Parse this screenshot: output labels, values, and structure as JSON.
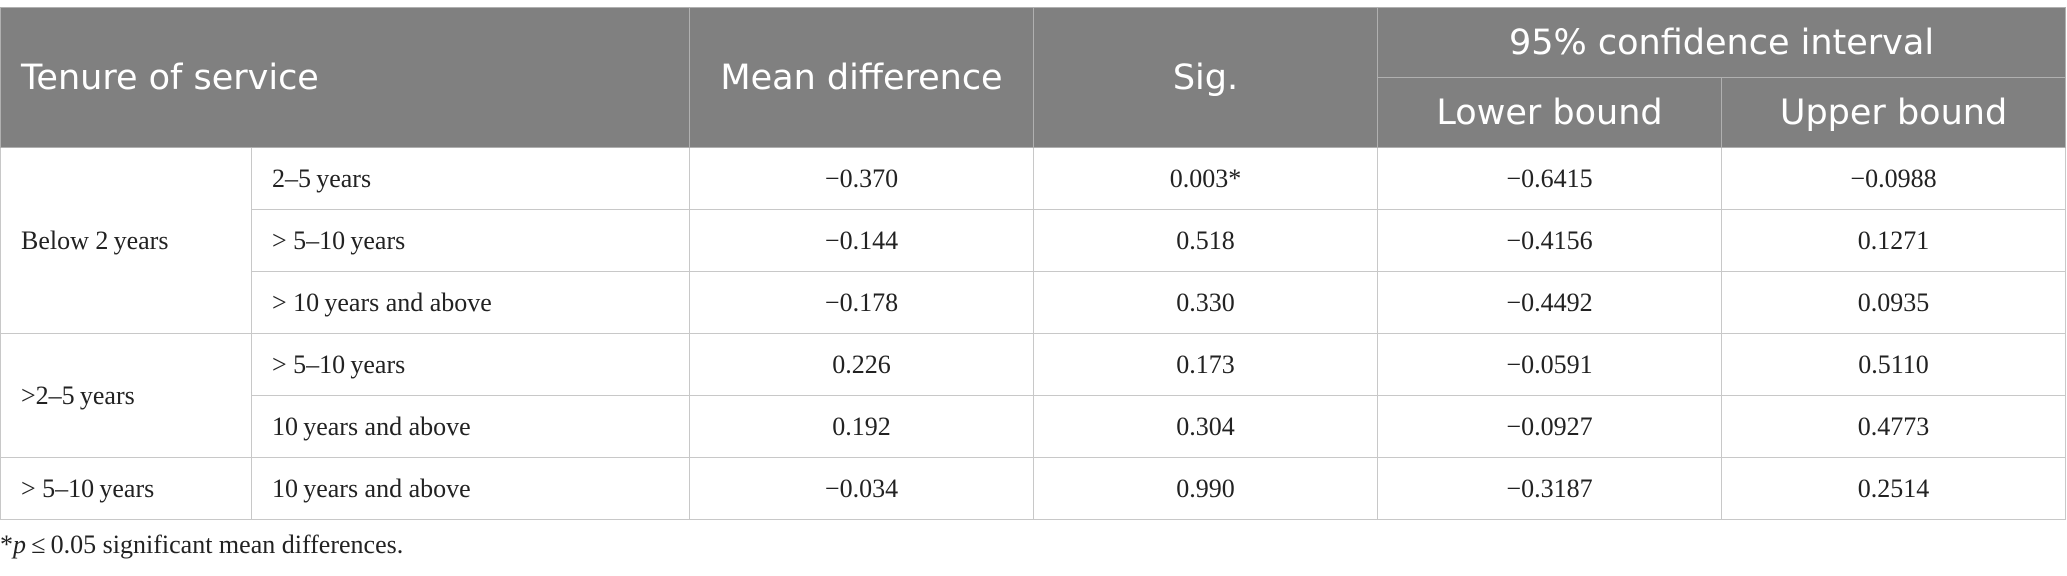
{
  "header": {
    "tenure": "Tenure of service",
    "mean_difference": "Mean difference",
    "sig": "Sig.",
    "ci": "95% confidence interval",
    "lower": "Lower bound",
    "upper": "Upper bound"
  },
  "groups": [
    {
      "label": "Below 2 years",
      "rows": [
        {
          "comparison": "2–5 years",
          "mean": "−0.370",
          "sig": "0.003*",
          "lower": "−0.6415",
          "upper": "−0.0988"
        },
        {
          "comparison": "> 5–10 years",
          "mean": "−0.144",
          "sig": "0.518",
          "lower": "−0.4156",
          "upper": "0.1271"
        },
        {
          "comparison": "> 10 years and above",
          "mean": "−0.178",
          "sig": "0.330",
          "lower": "−0.4492",
          "upper": "0.0935"
        }
      ]
    },
    {
      "label": ">2–5 years",
      "rows": [
        {
          "comparison": "> 5–10 years",
          "mean": "0.226",
          "sig": "0.173",
          "lower": "−0.0591",
          "upper": "0.5110"
        },
        {
          "comparison": "10 years and above",
          "mean": "0.192",
          "sig": "0.304",
          "lower": "−0.0927",
          "upper": "0.4773"
        }
      ]
    },
    {
      "label": "> 5–10 years",
      "rows": [
        {
          "comparison": "10 years and above",
          "mean": "−0.034",
          "sig": "0.990",
          "lower": "−0.3187",
          "upper": "0.2514"
        }
      ]
    }
  ],
  "footnote": {
    "star": "*",
    "p": "p",
    "text": " ≤ 0.05 significant mean differences."
  }
}
